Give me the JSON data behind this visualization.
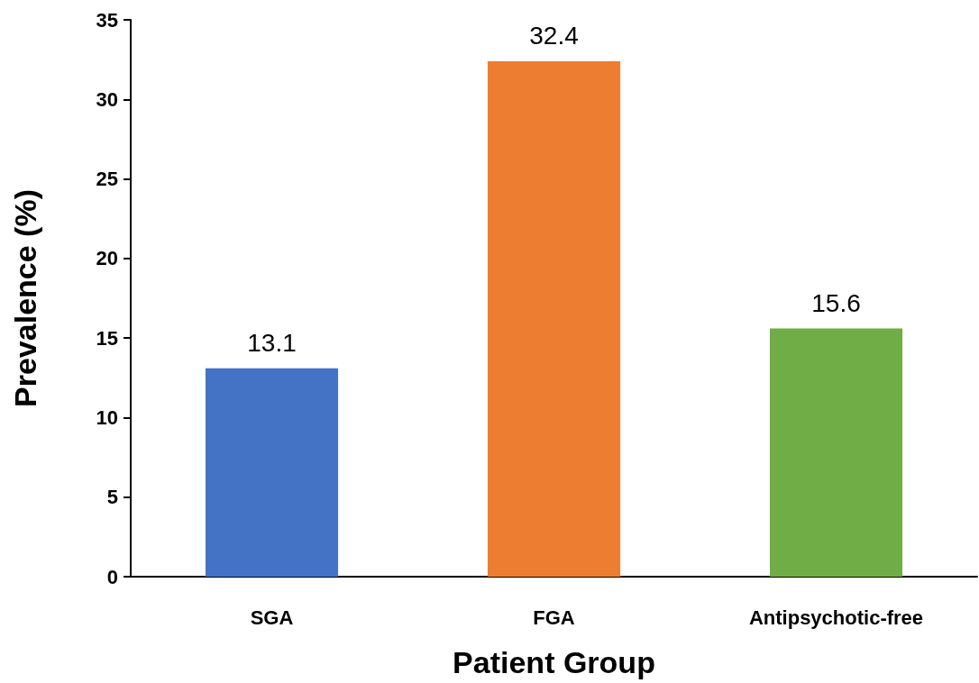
{
  "chart_data": {
    "type": "bar",
    "xlabel": "Patient Group",
    "ylabel": "Prevalence (%)",
    "categories": [
      "SGA",
      "FGA",
      "Antipsychotic-free"
    ],
    "values": [
      13.1,
      32.4,
      15.6
    ],
    "colors": [
      "#4472c4",
      "#ed7d31",
      "#70ad47"
    ],
    "ylim": [
      0,
      35
    ],
    "yticks": [
      0,
      5,
      10,
      15,
      20,
      25,
      30,
      35
    ],
    "grid": false,
    "data_labels": true
  }
}
